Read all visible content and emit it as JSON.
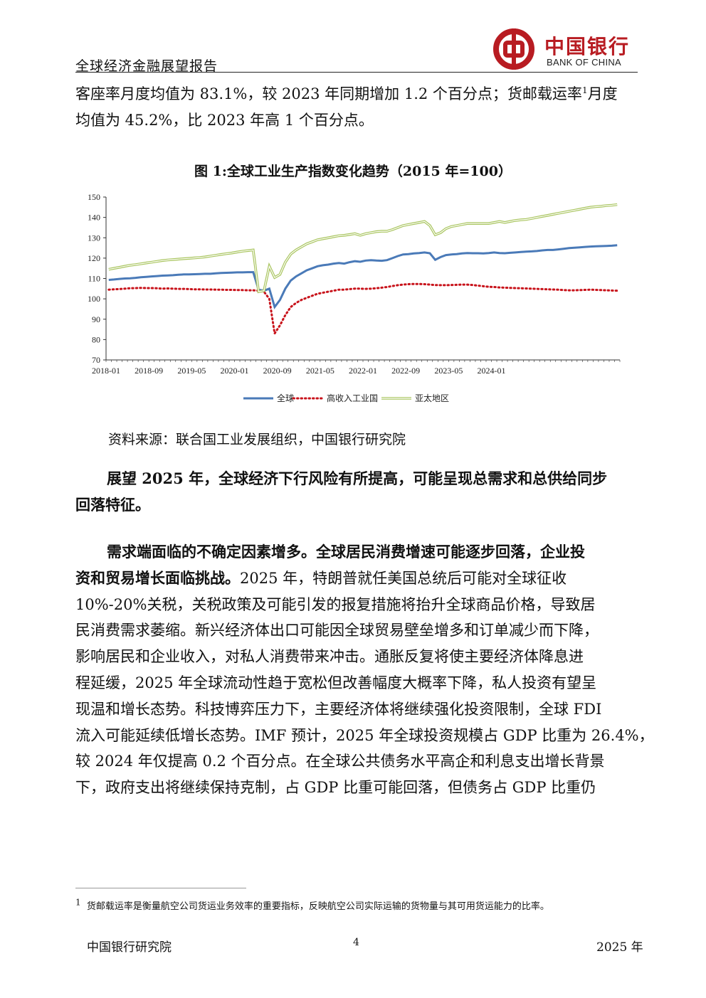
{
  "header": {
    "title": "全球经济金融展望报告",
    "logo_cn": "中国银行",
    "logo_en": "BANK OF CHINA"
  },
  "para_top": {
    "line1_a": "客座率月度均值为 83.1%，较 2023 年同期增加 1.2 个百分点；货邮载运率",
    "line1_sup": "1",
    "line1_b": "月度",
    "line2": "均值为 45.2%，比 2023 年高 1 个百分点。"
  },
  "figure": {
    "title": "图 1:全球工业生产指数变化趋势（2015 年=100）",
    "source": "资料来源：联合国工业发展组织，中国银行研究院"
  },
  "chart_data": {
    "type": "line",
    "ylim": [
      70,
      150
    ],
    "yticks": [
      70,
      80,
      90,
      100,
      110,
      120,
      130,
      140,
      150
    ],
    "xticks": [
      "2018-01",
      "2018-09",
      "2019-05",
      "2020-01",
      "2020-09",
      "2021-05",
      "2022-01",
      "2022-09",
      "2023-05",
      "2024-01"
    ],
    "x_start": "2018-01",
    "x_end": "2024-09",
    "legend": "bottom",
    "series": [
      {
        "name": "全球",
        "color": "#4a7ab8",
        "style": "solid",
        "values": [
          109.3,
          109.5,
          109.8,
          110.0,
          110.1,
          110.3,
          110.6,
          110.8,
          111.0,
          111.2,
          111.4,
          111.5,
          111.6,
          111.8,
          112.0,
          112.0,
          112.1,
          112.2,
          112.3,
          112.3,
          112.5,
          112.7,
          112.8,
          112.9,
          113.0,
          113.0,
          113.1,
          113.1,
          104.5,
          104.0,
          105.0,
          96.0,
          99.5,
          105.0,
          109.0,
          111.0,
          112.5,
          114.0,
          115.0,
          116.0,
          116.5,
          116.8,
          117.3,
          117.6,
          117.3,
          118.0,
          118.5,
          118.2,
          118.8,
          119.0,
          118.8,
          118.7,
          119.0,
          120.0,
          121.0,
          121.8,
          122.0,
          122.3,
          122.5,
          122.8,
          122.4,
          119.2,
          120.5,
          121.5,
          121.8,
          122.0,
          122.3,
          122.5,
          122.4,
          122.4,
          122.3,
          122.5,
          122.8,
          122.5,
          122.4,
          122.6,
          122.8,
          123.0,
          123.2,
          123.3,
          123.5,
          123.8,
          124.0,
          124.0,
          124.3,
          124.6,
          124.9,
          125.1,
          125.3,
          125.5,
          125.7,
          125.8,
          125.9,
          126.0,
          126.1,
          126.3
        ]
      },
      {
        "name": "高收入工业国",
        "color": "#c8131b",
        "style": "dotted",
        "values": [
          104.5,
          104.7,
          104.8,
          105.0,
          105.2,
          105.3,
          105.4,
          105.3,
          105.3,
          105.2,
          105.0,
          105.1,
          105.0,
          104.9,
          104.9,
          104.8,
          104.7,
          104.7,
          104.6,
          104.6,
          104.5,
          104.5,
          104.4,
          104.4,
          104.3,
          104.3,
          104.2,
          104.2,
          104.0,
          103.5,
          100.0,
          83.0,
          87.0,
          92.0,
          96.0,
          98.0,
          99.5,
          100.5,
          101.5,
          102.5,
          103.0,
          103.5,
          104.0,
          104.5,
          104.5,
          104.8,
          105.0,
          105.0,
          104.9,
          105.0,
          105.2,
          105.5,
          105.8,
          106.3,
          106.7,
          107.0,
          107.2,
          107.3,
          107.3,
          107.2,
          107.0,
          106.8,
          106.7,
          106.7,
          106.8,
          106.9,
          107.0,
          107.0,
          106.8,
          106.5,
          106.2,
          105.9,
          105.8,
          105.6,
          105.5,
          105.4,
          105.3,
          105.2,
          105.1,
          105.0,
          104.9,
          104.8,
          104.7,
          104.6,
          104.5,
          104.3,
          104.2,
          104.2,
          104.3,
          104.4,
          104.5,
          104.4,
          104.3,
          104.2,
          104.1,
          104.0
        ]
      },
      {
        "name": "亚太地区",
        "color": "#a9c55f",
        "style": "double",
        "values": [
          114.5,
          115.0,
          115.5,
          116.0,
          116.5,
          116.8,
          117.2,
          117.6,
          118.0,
          118.4,
          118.8,
          119.1,
          119.3,
          119.5,
          119.7,
          119.9,
          120.1,
          120.3,
          120.6,
          121.0,
          121.4,
          121.8,
          122.2,
          122.5,
          123.0,
          123.4,
          123.7,
          124.0,
          103.5,
          104.0,
          116.0,
          110.5,
          112.0,
          118.0,
          122.0,
          124.0,
          125.5,
          127.0,
          128.0,
          129.0,
          129.5,
          130.0,
          130.5,
          131.0,
          131.2,
          131.6,
          132.0,
          131.2,
          132.0,
          132.5,
          133.0,
          133.2,
          133.2,
          134.0,
          135.0,
          136.0,
          136.5,
          137.0,
          137.5,
          138.0,
          136.0,
          131.5,
          132.5,
          134.5,
          135.5,
          136.0,
          136.5,
          137.0,
          137.0,
          137.0,
          137.0,
          137.0,
          137.5,
          138.0,
          137.5,
          138.0,
          138.5,
          138.8,
          139.0,
          139.5,
          140.0,
          140.5,
          141.0,
          141.5,
          142.0,
          142.5,
          143.0,
          143.5,
          144.0,
          144.5,
          145.0,
          145.3,
          145.5,
          145.8,
          146.0,
          146.3
        ]
      }
    ]
  },
  "para_lead": {
    "line1": "展望 2025 年，全球经济下行风险有所提高，可能呈现总需求和总供给同步",
    "line2": "回落特征。"
  },
  "para_main": {
    "line1": "需求端面临的不确定因素增多。全球居民消费增速可能逐步回落，企业投",
    "line2_bold": "资和贸易增长面临挑战。",
    "line2_rest": "2025 年，特朗普就任美国总统后可能对全球征收",
    "line3": "10%-20%关税，关税政策及可能引发的报复措施将抬升全球商品价格，导致居",
    "line4": "民消费需求萎缩。新兴经济体出口可能因全球贸易壁垒增多和订单减少而下降，",
    "line5": "影响居民和企业收入，对私人消费带来冲击。通胀反复将使主要经济体降息进",
    "line6": "程延缓，2025 年全球流动性趋于宽松但改善幅度大概率下降，私人投资有望呈",
    "line7": "现温和增长态势。科技博弈压力下，主要经济体将继续强化投资限制，全球 FDI",
    "line8": "流入可能延续低增长态势。IMF 预计，2025 年全球投资规模占 GDP 比重为 26.4%，",
    "line9": "较 2024 年仅提高 0.2 个百分点。在全球公共债务水平高企和利息支出增长背景",
    "line10": "下，政府支出将继续保持克制，占 GDP 比重可能回落，但债务占 GDP 比重仍"
  },
  "footnote": {
    "mark": "1",
    "text": "货邮载运率是衡量航空公司货运业务效率的重要指标，反映航空公司实际运输的货物量与其可用货运能力的比率。"
  },
  "footer": {
    "left": "中国银行研究院",
    "page": "4",
    "right": "2025 年"
  }
}
